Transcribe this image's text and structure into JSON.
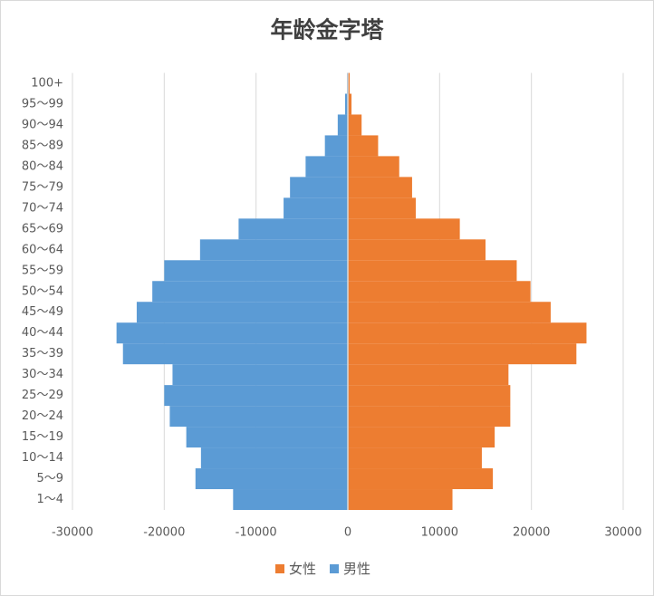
{
  "chart_data": {
    "type": "bar",
    "orientation": "horizontal",
    "title": "年龄金字塔",
    "categories": [
      "1～4",
      "5～9",
      "10～14",
      "15～19",
      "20～24",
      "25～29",
      "30～34",
      "35～39",
      "40～44",
      "45～49",
      "50～54",
      "55～59",
      "60～64",
      "65～69",
      "70～74",
      "75～79",
      "80～84",
      "85～89",
      "90～94",
      "95～99",
      "100+"
    ],
    "series": [
      {
        "name": "女性",
        "color": "#ed7d31",
        "values": [
          11400,
          15800,
          14600,
          16000,
          17700,
          17700,
          17500,
          24900,
          26000,
          22100,
          19900,
          18400,
          15000,
          12200,
          7400,
          7000,
          5600,
          3300,
          1500,
          400,
          200
        ]
      },
      {
        "name": "男性",
        "color": "#5b9bd5",
        "values": [
          -12500,
          -16600,
          -16000,
          -17600,
          -19400,
          -20000,
          -19100,
          -24500,
          -25200,
          -23000,
          -21300,
          -20000,
          -16100,
          -11900,
          -7000,
          -6300,
          -4600,
          -2500,
          -1100,
          -300,
          -100
        ]
      }
    ],
    "xlim": [
      -30000,
      30000
    ],
    "xticks": [
      -30000,
      -20000,
      -10000,
      0,
      10000,
      20000,
      30000
    ],
    "grid": true,
    "legend": "bottom"
  }
}
